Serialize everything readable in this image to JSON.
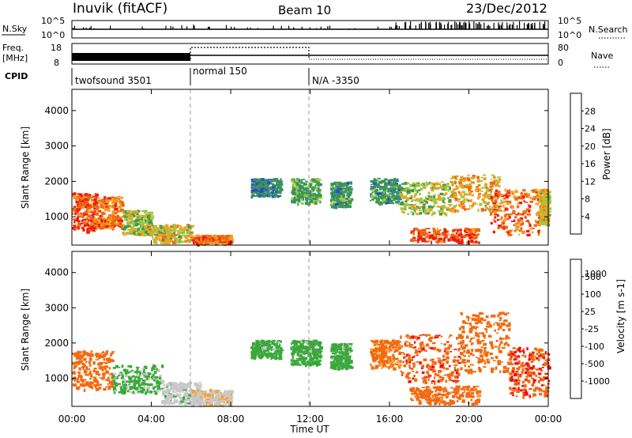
{
  "header": {
    "station": "Inuvik (fitACF)",
    "beam": "Beam 10",
    "date": "23/Dec/2012"
  },
  "strip_labels": {
    "nsky": "N.Sky",
    "freq_top": "Freq.",
    "freq_unit": "[MHz]",
    "cpid": "CPID",
    "nsearch": "N.Search",
    "nave": "Nave"
  },
  "strip_ticks": {
    "nsky_left": [
      "10^5",
      "10^0"
    ],
    "nsky_right": [
      "10^5",
      "10^0"
    ],
    "freq_left": [
      "18",
      "8"
    ],
    "freq_right": [
      "80",
      "0"
    ]
  },
  "cpid_segments": [
    {
      "label": "twofsound 3501",
      "start_h": 0
    },
    {
      "label": "normal 150",
      "start_h": 6
    },
    {
      "label": "N/A -3350",
      "start_h": 12
    }
  ],
  "colors": {
    "power_scale": [
      "#1a1aff",
      "#2a4fb8",
      "#3c8a78",
      "#3a9a4a",
      "#a0c840",
      "#f7a020",
      "#f06a10",
      "#ee1c10"
    ],
    "velocity_scale": [
      "#ee1010",
      "#f26a10",
      "#f7a030",
      "#c8c8c8",
      "#c8c8c8",
      "#3aa83a",
      "#3a8a7a",
      "#2a58b8"
    ]
  },
  "chart_data": [
    {
      "type": "heatmap",
      "panel": "power",
      "xlabel": "",
      "ylabel": "Slant Range [km]",
      "xlim_hours": [
        0,
        24
      ],
      "ylim": [
        200,
        4600
      ],
      "yticks": [
        1000,
        2000,
        3000,
        4000
      ],
      "colorbar_label": "Power [dB]",
      "colorbar_ticks": [
        "4",
        "8",
        "12",
        "16",
        "20",
        "24",
        "28"
      ],
      "colorbar_range": [
        0,
        32
      ],
      "scatter_regions": [
        {
          "t0": 0.0,
          "t1": 1.2,
          "r0": 600,
          "r1": 1700,
          "value": 28
        },
        {
          "t0": 1.2,
          "t1": 2.5,
          "r0": 700,
          "r1": 1600,
          "value": 25
        },
        {
          "t0": 2.5,
          "t1": 4.0,
          "r0": 500,
          "r1": 1200,
          "value": 18
        },
        {
          "t0": 4.0,
          "t1": 6.0,
          "r0": 300,
          "r1": 800,
          "value": 20
        },
        {
          "t0": 6.0,
          "t1": 8.0,
          "r0": 250,
          "r1": 500,
          "value": 26
        },
        {
          "t0": 9.0,
          "t1": 10.5,
          "r0": 1600,
          "r1": 2100,
          "value": 10
        },
        {
          "t0": 11.0,
          "t1": 12.5,
          "r0": 1400,
          "r1": 2100,
          "value": 14
        },
        {
          "t0": 13.0,
          "t1": 14.0,
          "r0": 1300,
          "r1": 2000,
          "value": 12
        },
        {
          "t0": 15.0,
          "t1": 16.5,
          "r0": 1400,
          "r1": 2100,
          "value": 12
        },
        {
          "t0": 16.5,
          "t1": 19.0,
          "r0": 1100,
          "r1": 2000,
          "value": 18
        },
        {
          "t0": 17.0,
          "t1": 20.5,
          "r0": 300,
          "r1": 700,
          "value": 28
        },
        {
          "t0": 19.0,
          "t1": 21.5,
          "r0": 1200,
          "r1": 2200,
          "value": 22
        },
        {
          "t0": 21.0,
          "t1": 23.5,
          "r0": 500,
          "r1": 1800,
          "value": 27
        },
        {
          "t0": 23.5,
          "t1": 24.0,
          "r0": 800,
          "r1": 1800,
          "value": 20
        }
      ]
    },
    {
      "type": "heatmap",
      "panel": "velocity",
      "xlabel": "Time UT",
      "ylabel": "Slant Range [km]",
      "xlim_hours": [
        0,
        24
      ],
      "ylim": [
        200,
        4600
      ],
      "yticks": [
        1000,
        2000,
        3000,
        4000
      ],
      "xticks": [
        "00:00",
        "04:00",
        "08:00",
        "12:00",
        "16:00",
        "20:00",
        "00:00"
      ],
      "colorbar_label": "Velocity [m s-1]",
      "colorbar_ticks": [
        "-1000",
        "-500",
        "-100",
        "-25",
        "25",
        "100",
        "500",
        "1000"
      ],
      "scatter_regions": [
        {
          "t0": 0.0,
          "t1": 2.0,
          "r0": 700,
          "r1": 1800,
          "value": -300
        },
        {
          "t0": 2.0,
          "t1": 4.5,
          "r0": 600,
          "r1": 1400,
          "value": 150
        },
        {
          "t0": 4.5,
          "t1": 6.5,
          "r0": 300,
          "r1": 900,
          "value": 50
        },
        {
          "t0": 6.0,
          "t1": 8.0,
          "r0": 250,
          "r1": 700,
          "value": 0
        },
        {
          "t0": 9.0,
          "t1": 10.5,
          "r0": 1600,
          "r1": 2100,
          "value": 200
        },
        {
          "t0": 11.0,
          "t1": 12.5,
          "r0": 1400,
          "r1": 2100,
          "value": 200
        },
        {
          "t0": 13.0,
          "t1": 14.0,
          "r0": 1300,
          "r1": 2000,
          "value": 200
        },
        {
          "t0": 15.0,
          "t1": 16.5,
          "r0": 1300,
          "r1": 2100,
          "value": -150
        },
        {
          "t0": 16.5,
          "t1": 19.5,
          "r0": 900,
          "r1": 2300,
          "value": -400
        },
        {
          "t0": 17.0,
          "t1": 20.5,
          "r0": 300,
          "r1": 800,
          "value": -200
        },
        {
          "t0": 19.5,
          "t1": 22.0,
          "r0": 1200,
          "r1": 2900,
          "value": -300
        },
        {
          "t0": 22.0,
          "t1": 24.0,
          "r0": 500,
          "r1": 1900,
          "value": -450
        }
      ]
    }
  ]
}
